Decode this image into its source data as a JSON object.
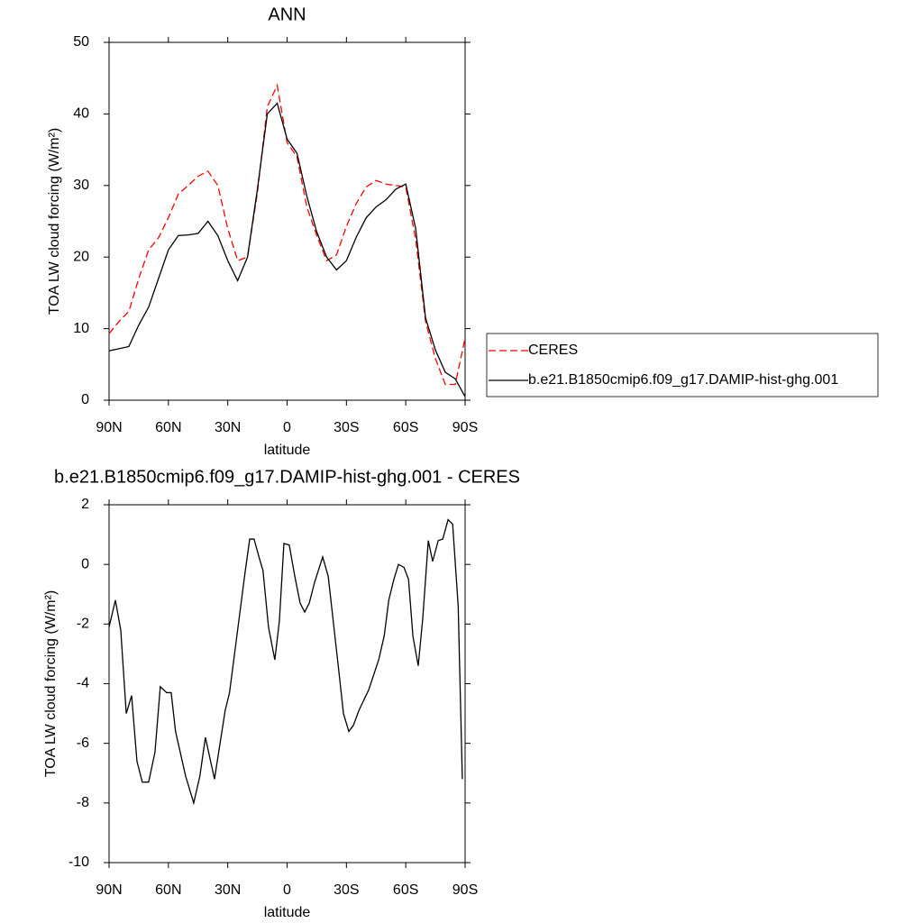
{
  "chart_data": [
    {
      "type": "line",
      "title": "ANN",
      "xlabel": "latitude",
      "ylabel": "TOA LW cloud forcing (W/m²)",
      "xlim": [
        90,
        -90
      ],
      "xticks": [
        {
          "value": 90,
          "label": "90N"
        },
        {
          "value": 60,
          "label": "60N"
        },
        {
          "value": 30,
          "label": "30N"
        },
        0,
        {
          "value": -30,
          "label": "30S"
        },
        {
          "value": -60,
          "label": "60S"
        },
        {
          "value": -90,
          "label": "90S"
        }
      ],
      "ylim": [
        0,
        50
      ],
      "yticks": [
        0,
        10,
        20,
        30,
        40,
        50
      ],
      "legend": "outside-right",
      "x": [
        90,
        85,
        80,
        75,
        70,
        65,
        60,
        55,
        50,
        45,
        40,
        35,
        30,
        25,
        20,
        15,
        10,
        5,
        0,
        -5,
        -10,
        -15,
        -20,
        -25,
        -30,
        -35,
        -40,
        -45,
        -50,
        -55,
        -60,
        -65,
        -70,
        -75,
        -80,
        -85,
        -90
      ],
      "series": [
        {
          "name": "CERES",
          "color": "#ff0000",
          "dashed": true,
          "values": [
            9.3,
            11,
            12.4,
            17,
            21,
            22.7,
            25.5,
            28.8,
            30,
            31.3,
            32,
            30,
            24,
            19.5,
            20,
            29,
            41,
            44,
            36,
            34,
            27,
            23,
            19.5,
            20.3,
            24.3,
            27.5,
            29.8,
            30.7,
            30.2,
            30,
            29.8,
            22.5,
            11,
            5.8,
            2.2,
            2.2,
            8.7
          ]
        },
        {
          "name": "b.e21.B1850cmip6.f09_g17.DAMIP-hist-ghg.001",
          "color": "#000000",
          "dashed": false,
          "values": [
            6.9,
            7.2,
            7.5,
            10.5,
            13,
            17,
            21,
            23,
            23.1,
            23.3,
            25,
            23,
            19.5,
            16.7,
            20,
            29.5,
            40,
            41.5,
            36.5,
            34.5,
            28.5,
            23.5,
            20,
            18.2,
            19.5,
            22.8,
            25.5,
            27,
            28,
            29.5,
            30.2,
            24,
            11.5,
            7,
            3.9,
            3,
            0.5
          ]
        }
      ]
    },
    {
      "type": "line",
      "title": "b.e21.B1850cmip6.f09_g17.DAMIP-hist-ghg.001 - CERES",
      "xlabel": "latitude",
      "ylabel": "TOA LW cloud forcing (W/m²)",
      "xlim": [
        90,
        -90
      ],
      "xticks": [
        {
          "value": 90,
          "label": "90N"
        },
        {
          "value": 60,
          "label": "60N"
        },
        {
          "value": 30,
          "label": "30N"
        },
        0,
        {
          "value": -30,
          "label": "30S"
        },
        {
          "value": -60,
          "label": "60S"
        },
        {
          "value": -90,
          "label": "90S"
        }
      ],
      "ylim": [
        -10,
        2
      ],
      "yticks": [
        -10,
        -8,
        -6,
        -4,
        -2,
        0,
        2
      ],
      "color": "#000000",
      "x": [
        90,
        86.8,
        84.1,
        81.3,
        78.6,
        75.9,
        73.2,
        70,
        66.8,
        64.1,
        60.9,
        58.6,
        56.4,
        51.3,
        47.2,
        44.1,
        41.3,
        36.7,
        31.3,
        29.1,
        21.3,
        18.9,
        16.7,
        14,
        12.2,
        9.4,
        6.2,
        3.9,
        1.6,
        -1.1,
        -3.9,
        -6.6,
        -8.9,
        -11.2,
        -13.9,
        -18,
        -20.8,
        -26.2,
        -28.5,
        -31.2,
        -33.5,
        -36.3,
        -41.3,
        -46.3,
        -49.1,
        -51.4,
        -54,
        -56.3,
        -59.1,
        -61.4,
        -63.6,
        -66.3,
        -68.6,
        -71.4,
        -73.6,
        -76.4,
        -78.7,
        -81.4,
        -83.7,
        -86.5,
        -88.6
      ],
      "values": [
        -2.1,
        -1.2,
        -2.2,
        -5,
        -4.4,
        -6.6,
        -7.3,
        -7.3,
        -6.3,
        -4.1,
        -4.3,
        -4.3,
        -5.6,
        -7.1,
        -8,
        -7.1,
        -5.8,
        -7.2,
        -4.9,
        -4.3,
        -0.3,
        0.85,
        0.85,
        0.2,
        -0.2,
        -2.1,
        -3.2,
        -1.9,
        0.7,
        0.65,
        -0.4,
        -1.3,
        -1.6,
        -1.3,
        -0.6,
        0.25,
        -0.4,
        -3.6,
        -5,
        -5.6,
        -5.4,
        -4.9,
        -4.2,
        -3.2,
        -2.4,
        -1.2,
        -0.5,
        0,
        -0.1,
        -0.5,
        -2.4,
        -3.4,
        -1.8,
        0.8,
        0.1,
        0.8,
        0.85,
        1.5,
        1.35,
        -1.4,
        -7.2
      ]
    }
  ]
}
